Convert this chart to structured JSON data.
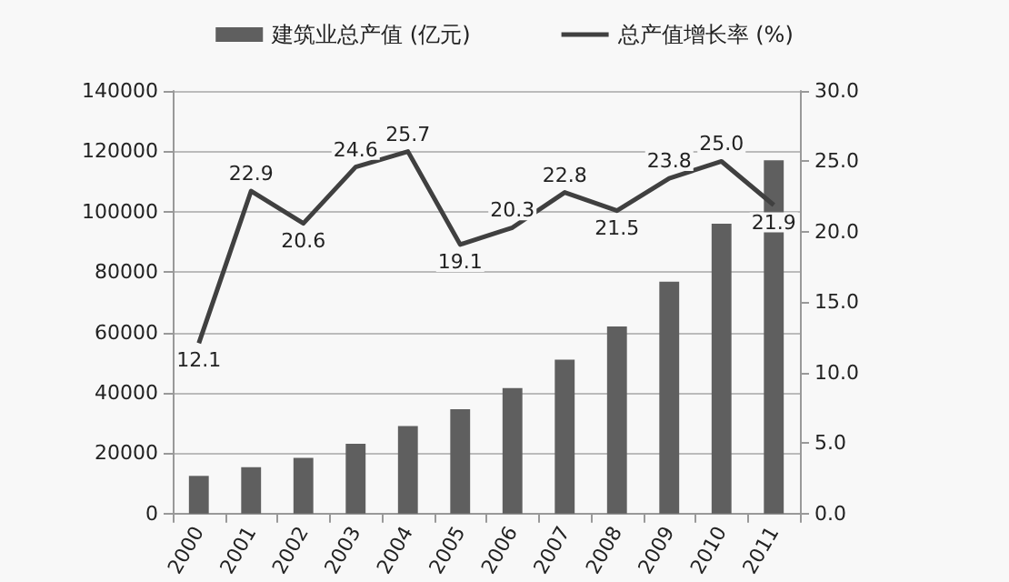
{
  "chart_data": {
    "type": "bar",
    "categories": [
      "2000",
      "2001",
      "2002",
      "2003",
      "2004",
      "2005",
      "2006",
      "2007",
      "2008",
      "2009",
      "2010",
      "2011"
    ],
    "series": [
      {
        "name": "建筑业总产值 (亿元)",
        "color": "#5f5f5f",
        "values": [
          12500,
          15400,
          18500,
          23100,
          29000,
          34600,
          41600,
          51000,
          62000,
          76800,
          96000,
          117000
        ]
      },
      {
        "name": "总产值增长率 (%)",
        "type": "line",
        "axis": "y2",
        "color": "#404040",
        "values": [
          12.1,
          22.9,
          20.6,
          24.6,
          25.7,
          19.1,
          20.3,
          22.8,
          21.5,
          23.8,
          25.0,
          21.9
        ],
        "value_labels": [
          "12.1",
          "22.9",
          "20.6",
          "24.6",
          "25.7",
          "19.1",
          "20.3",
          "22.8",
          "21.5",
          "23.8",
          "25.0",
          "21.9"
        ]
      }
    ],
    "ylim": [
      0,
      140000
    ],
    "yticks": [
      0,
      20000,
      40000,
      60000,
      80000,
      100000,
      120000,
      140000
    ],
    "y2lim": [
      0,
      30
    ],
    "y2ticks": [
      {
        "value": 0,
        "label": "0.0"
      },
      {
        "value": 5,
        "label": "5.0"
      },
      {
        "value": 10,
        "label": "10.0"
      },
      {
        "value": 15,
        "label": "15.0"
      },
      {
        "value": 20,
        "label": "20.0"
      },
      {
        "value": 25,
        "label": "25.0"
      },
      {
        "value": 30,
        "label": "30.0"
      }
    ],
    "grid": "y",
    "legend": "top",
    "marker": "none"
  }
}
